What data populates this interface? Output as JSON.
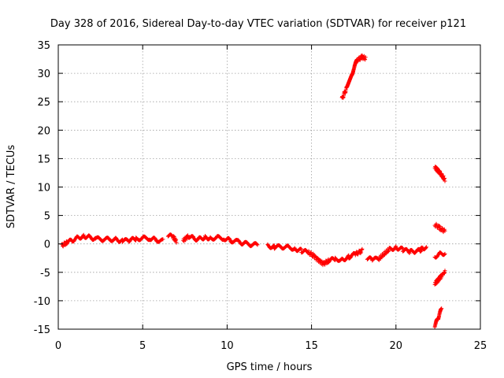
{
  "chart_data": {
    "type": "scatter",
    "title": "Day 328 of 2016, Sidereal Day-to-day VTEC variation (SDTVAR) for receiver p121",
    "xlabel": "GPS time / hours",
    "ylabel": "SDTVAR / TECUs",
    "xlim": [
      0,
      25
    ],
    "ylim": [
      -15,
      35
    ],
    "xticks": [
      0,
      5,
      10,
      15,
      20,
      25
    ],
    "yticks": [
      -15,
      -10,
      -5,
      0,
      5,
      10,
      15,
      20,
      25,
      30,
      35
    ],
    "grid": true,
    "marker": "plus",
    "series": [
      {
        "color": "#ff0000",
        "segments": [
          [
            [
              0.2,
              -0.3
            ],
            [
              0.5,
              0.2
            ],
            [
              0.8,
              0.6
            ],
            [
              1.1,
              1.0
            ],
            [
              1.5,
              1.4
            ],
            [
              1.8,
              1.2
            ],
            [
              2.2,
              0.9
            ],
            [
              2.6,
              0.8
            ],
            [
              3.0,
              0.8
            ],
            [
              3.4,
              0.8
            ],
            [
              3.8,
              0.5
            ],
            [
              4.2,
              0.6
            ],
            [
              4.6,
              0.9
            ],
            [
              5.0,
              1.0
            ],
            [
              5.4,
              1.0
            ],
            [
              5.8,
              0.7
            ],
            [
              6.2,
              0.5
            ]
          ],
          [
            [
              6.5,
              1.5
            ],
            [
              6.8,
              1.2
            ],
            [
              7.0,
              0.5
            ]
          ],
          [
            [
              7.4,
              0.6
            ],
            [
              7.7,
              1.4
            ],
            [
              8.0,
              1.0
            ],
            [
              8.3,
              0.8
            ],
            [
              8.7,
              1.2
            ],
            [
              9.0,
              1.0
            ],
            [
              9.4,
              1.1
            ],
            [
              9.8,
              1.0
            ],
            [
              10.2,
              0.6
            ],
            [
              10.6,
              0.4
            ],
            [
              11.0,
              0.1
            ],
            [
              11.4,
              -0.1
            ],
            [
              11.8,
              -0.2
            ]
          ],
          [
            [
              12.4,
              -0.3
            ],
            [
              12.8,
              -0.6
            ],
            [
              13.2,
              -0.5
            ],
            [
              13.6,
              -0.6
            ],
            [
              14.0,
              -0.8
            ],
            [
              14.4,
              -1.2
            ],
            [
              14.8,
              -1.5
            ],
            [
              15.1,
              -2.0
            ],
            [
              15.4,
              -2.8
            ],
            [
              15.7,
              -3.5
            ],
            [
              16.0,
              -3.0
            ],
            [
              16.4,
              -2.6
            ],
            [
              16.8,
              -2.8
            ],
            [
              17.2,
              -2.3
            ],
            [
              17.6,
              -1.8
            ],
            [
              18.0,
              -1.2
            ]
          ],
          [
            [
              18.3,
              -2.5
            ],
            [
              18.6,
              -2.8
            ],
            [
              19.0,
              -2.6
            ],
            [
              19.3,
              -1.8
            ],
            [
              19.6,
              -1.0
            ],
            [
              20.0,
              -0.6
            ],
            [
              20.4,
              -1.0
            ],
            [
              20.8,
              -1.4
            ],
            [
              21.1,
              -1.3
            ],
            [
              21.4,
              -1.2
            ],
            [
              21.6,
              -0.7
            ],
            [
              21.8,
              -0.6
            ]
          ],
          [
            [
              16.8,
              25.5
            ],
            [
              17.1,
              27.5
            ],
            [
              17.4,
              30.0
            ],
            [
              17.7,
              32.3
            ],
            [
              18.0,
              32.9
            ],
            [
              18.2,
              32.6
            ]
          ],
          [
            [
              22.3,
              13.5
            ],
            [
              22.6,
              12.5
            ],
            [
              22.9,
              11.3
            ]
          ],
          [
            [
              22.3,
              3.4
            ],
            [
              22.6,
              2.8
            ],
            [
              22.9,
              2.2
            ]
          ],
          [
            [
              22.3,
              -2.2
            ],
            [
              22.6,
              -1.8
            ],
            [
              22.9,
              -1.6
            ]
          ],
          [
            [
              22.3,
              -7.0
            ],
            [
              22.6,
              -6.0
            ],
            [
              22.9,
              -4.9
            ]
          ],
          [
            [
              22.3,
              -14.5
            ],
            [
              22.5,
              -13.0
            ],
            [
              22.7,
              -11.5
            ]
          ]
        ]
      }
    ]
  }
}
